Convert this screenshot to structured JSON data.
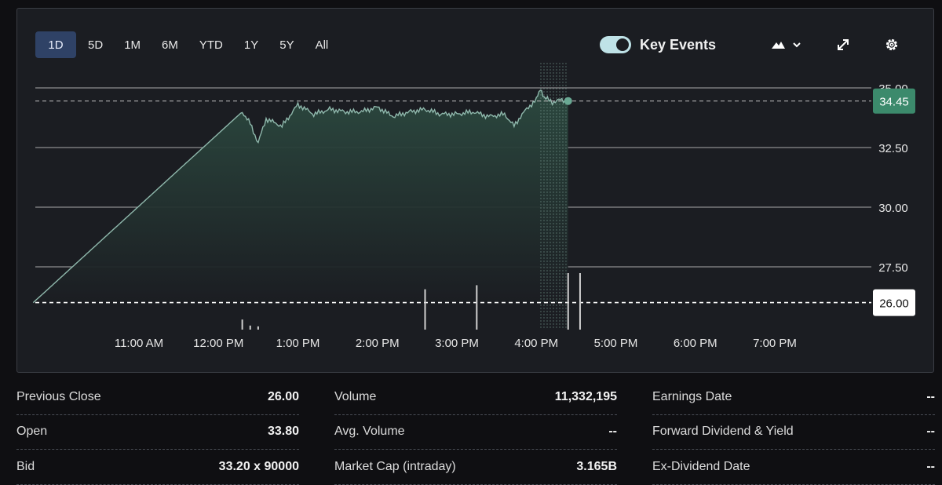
{
  "toolbar": {
    "ranges": [
      "1D",
      "5D",
      "1M",
      "6M",
      "YTD",
      "1Y",
      "5Y",
      "All"
    ],
    "active_range": "1D",
    "key_events_label": "Key Events",
    "key_events_on": true,
    "icons": [
      "mountain-chart-icon",
      "chevron-down-icon",
      "expand-icon",
      "gear-icon"
    ]
  },
  "chart_data": {
    "type": "line",
    "x_ticks": [
      "11:00 AM",
      "12:00 PM",
      "1:00 PM",
      "2:00 PM",
      "3:00 PM",
      "4:00 PM",
      "5:00 PM",
      "6:00 PM",
      "7:00 PM"
    ],
    "y_ticks": [
      "35.00",
      "32.50",
      "30.00",
      "27.50"
    ],
    "ylim": [
      25.5,
      35.0
    ],
    "previous_close": 26.0,
    "previous_close_label": "26.00",
    "current_price": 34.45,
    "current_price_label": "34.45",
    "grid": true,
    "series": [
      {
        "x_hours": [
          9.67,
          12.3,
          12.4,
          12.5,
          12.6,
          12.8,
          13.0,
          13.2,
          13.4,
          13.6,
          13.8,
          14.0,
          14.2,
          14.4,
          14.6,
          14.8,
          15.0,
          15.2,
          15.4,
          15.6,
          15.72,
          15.8,
          15.9,
          16.0,
          16.05,
          16.1,
          16.2,
          16.3,
          16.4
        ],
        "y": [
          26.0,
          34.0,
          33.5,
          32.7,
          33.7,
          33.4,
          34.3,
          33.9,
          34.1,
          34.0,
          34.0,
          34.2,
          33.8,
          34.0,
          34.1,
          33.9,
          33.9,
          34.0,
          33.8,
          33.9,
          33.4,
          33.8,
          34.2,
          34.5,
          35.0,
          34.6,
          34.4,
          34.5,
          34.45
        ]
      }
    ],
    "volume": {
      "x_hours": [
        12.3,
        12.4,
        12.5,
        14.6,
        15.25,
        16.4,
        16.55
      ],
      "relative": [
        0.25,
        0.1,
        0.08,
        1.0,
        1.1,
        1.4,
        1.4
      ]
    }
  },
  "stats": {
    "col1": [
      {
        "label": "Previous Close",
        "value": "26.00"
      },
      {
        "label": "Open",
        "value": "33.80"
      },
      {
        "label": "Bid",
        "value": "33.20 x 90000"
      }
    ],
    "col2": [
      {
        "label": "Volume",
        "value": "11,332,195"
      },
      {
        "label": "Avg. Volume",
        "value": "--"
      },
      {
        "label": "Market Cap (intraday)",
        "value": "3.165B"
      }
    ],
    "col3": [
      {
        "label": "Earnings Date",
        "value": "--"
      },
      {
        "label": "Forward Dividend & Yield",
        "value": "--"
      },
      {
        "label": "Ex-Dividend Date",
        "value": "--"
      }
    ]
  },
  "colors": {
    "line": "#8fb8ac",
    "area_top": "#2c4a40",
    "area_bottom": "#1b1d22",
    "current_badge": "#3c8a6c",
    "prev_badge": "#ffffff",
    "grid": "#d8d8d8"
  }
}
